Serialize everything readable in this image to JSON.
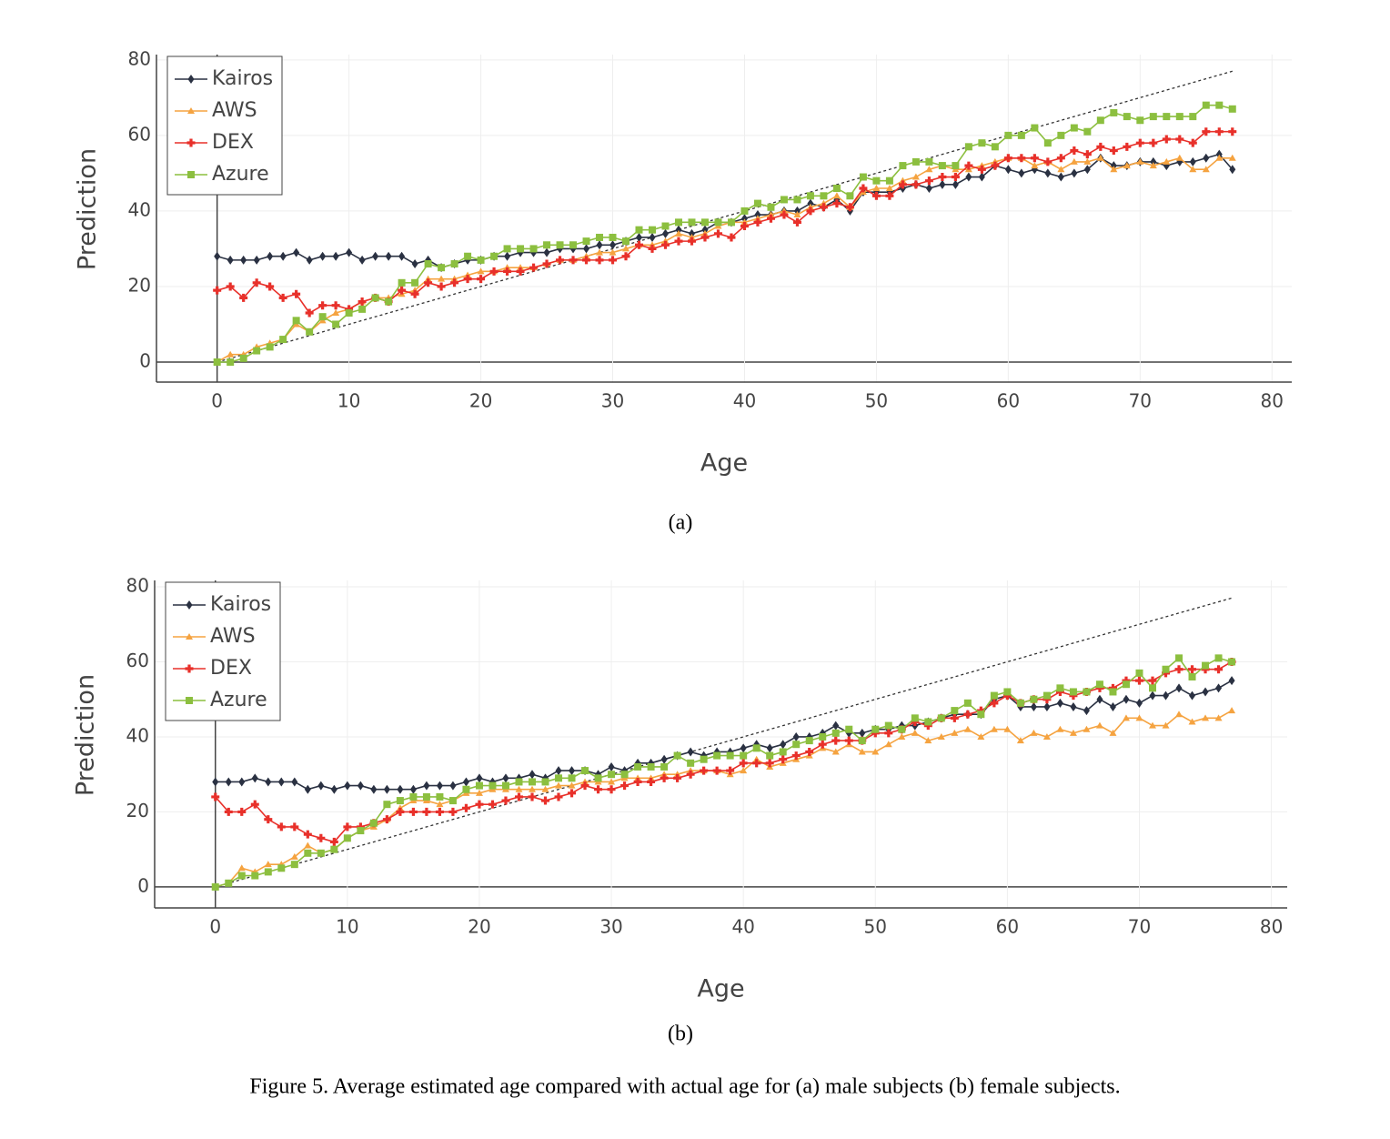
{
  "chart_data": [
    {
      "type": "line",
      "label": "(a)",
      "x_label": "Age",
      "y_label": "Prediction",
      "x": [
        0,
        1,
        2,
        3,
        4,
        5,
        6,
        7,
        8,
        9,
        10,
        11,
        12,
        13,
        14,
        15,
        16,
        17,
        18,
        19,
        20,
        21,
        22,
        23,
        24,
        25,
        26,
        27,
        28,
        29,
        30,
        31,
        32,
        33,
        34,
        35,
        36,
        37,
        38,
        39,
        40,
        41,
        42,
        43,
        44,
        45,
        46,
        47,
        48,
        49,
        50,
        51,
        52,
        53,
        54,
        55,
        56,
        57,
        58,
        59,
        60,
        61,
        62,
        63,
        64,
        65,
        66,
        67,
        68,
        69,
        70,
        71,
        72,
        73,
        74,
        75,
        76,
        77
      ],
      "series": [
        {
          "name": "Kairos",
          "color": "#2a3142",
          "marker": "diamond",
          "values": [
            28,
            27,
            27,
            27,
            28,
            28,
            29,
            27,
            28,
            28,
            29,
            27,
            28,
            28,
            28,
            26,
            27,
            25,
            26,
            27,
            27,
            28,
            28,
            29,
            29,
            29,
            30,
            30,
            30,
            31,
            31,
            32,
            33,
            33,
            34,
            35,
            34,
            35,
            37,
            37,
            38,
            39,
            39,
            40,
            40,
            42,
            41,
            43,
            40,
            45,
            45,
            45,
            46,
            47,
            46,
            47,
            47,
            49,
            49,
            52,
            51,
            50,
            51,
            50,
            49,
            50,
            51,
            54,
            52,
            52,
            53,
            53,
            52,
            53,
            53,
            54,
            55,
            51
          ]
        },
        {
          "name": "AWS",
          "color": "#f5a340",
          "marker": "triangle",
          "values": [
            0,
            2,
            2,
            4,
            5,
            6,
            10,
            8,
            11,
            13,
            14,
            16,
            17,
            17,
            18,
            19,
            22,
            22,
            22,
            23,
            24,
            24,
            25,
            25,
            25,
            26,
            27,
            27,
            28,
            29,
            29,
            30,
            31,
            31,
            32,
            34,
            33,
            34,
            36,
            37,
            37,
            38,
            39,
            40,
            39,
            41,
            42,
            44,
            41,
            45,
            46,
            46,
            48,
            49,
            51,
            52,
            51,
            51,
            52,
            53,
            54,
            54,
            52,
            53,
            51,
            53,
            53,
            54,
            51,
            52,
            53,
            52,
            53,
            54,
            51,
            51,
            54,
            54
          ]
        },
        {
          "name": "DEX",
          "color": "#e8302a",
          "marker": "cross",
          "values": [
            19,
            20,
            17,
            21,
            20,
            17,
            18,
            13,
            15,
            15,
            14,
            16,
            17,
            16,
            19,
            18,
            21,
            20,
            21,
            22,
            22,
            24,
            24,
            24,
            25,
            26,
            27,
            27,
            27,
            27,
            27,
            28,
            31,
            30,
            31,
            32,
            32,
            33,
            34,
            33,
            36,
            37,
            38,
            39,
            37,
            40,
            41,
            42,
            41,
            46,
            44,
            44,
            47,
            47,
            48,
            49,
            49,
            52,
            51,
            52,
            54,
            54,
            54,
            53,
            54,
            56,
            55,
            57,
            56,
            57,
            58,
            58,
            59,
            59,
            58,
            61,
            61,
            61
          ]
        },
        {
          "name": "Azure",
          "color": "#8cbf3f",
          "marker": "square",
          "values": [
            0,
            0,
            1,
            3,
            4,
            6,
            11,
            8,
            12,
            10,
            13,
            14,
            17,
            16,
            21,
            21,
            26,
            25,
            26,
            28,
            27,
            28,
            30,
            30,
            30,
            31,
            31,
            31,
            32,
            33,
            33,
            32,
            35,
            35,
            36,
            37,
            37,
            37,
            37,
            37,
            40,
            42,
            41,
            43,
            43,
            44,
            44,
            46,
            44,
            49,
            48,
            48,
            52,
            53,
            53,
            52,
            52,
            57,
            58,
            57,
            60,
            60,
            62,
            58,
            60,
            62,
            61,
            64,
            66,
            65,
            64,
            65,
            65,
            65,
            65,
            68,
            68,
            67
          ]
        }
      ],
      "reference_line": {
        "x": [
          0,
          77
        ],
        "y": [
          0,
          77
        ],
        "style": "dotted"
      },
      "xlim": [
        -4.6,
        81.5
      ],
      "ylim": [
        -5.3,
        81.4
      ],
      "xticks": [
        0,
        10,
        20,
        30,
        40,
        50,
        60,
        70,
        80
      ],
      "yticks": [
        0,
        20,
        40,
        60,
        80
      ],
      "grid": true,
      "legend": "top-left"
    },
    {
      "type": "line",
      "label": "(b)",
      "x_label": "Age",
      "y_label": "Prediction",
      "x": [
        0,
        1,
        2,
        3,
        4,
        5,
        6,
        7,
        8,
        9,
        10,
        11,
        12,
        13,
        14,
        15,
        16,
        17,
        18,
        19,
        20,
        21,
        22,
        23,
        24,
        25,
        26,
        27,
        28,
        29,
        30,
        31,
        32,
        33,
        34,
        35,
        36,
        37,
        38,
        39,
        40,
        41,
        42,
        43,
        44,
        45,
        46,
        47,
        48,
        49,
        50,
        51,
        52,
        53,
        54,
        55,
        56,
        57,
        58,
        59,
        60,
        61,
        62,
        63,
        64,
        65,
        66,
        67,
        68,
        69,
        70,
        71,
        72,
        73,
        74,
        75,
        76,
        77
      ],
      "series": [
        {
          "name": "Kairos",
          "color": "#2a3142",
          "marker": "diamond",
          "values": [
            28,
            28,
            28,
            29,
            28,
            28,
            28,
            26,
            27,
            26,
            27,
            27,
            26,
            26,
            26,
            26,
            27,
            27,
            27,
            28,
            29,
            28,
            29,
            29,
            30,
            29,
            31,
            31,
            31,
            30,
            32,
            31,
            33,
            33,
            34,
            35,
            36,
            35,
            36,
            36,
            37,
            38,
            37,
            38,
            40,
            40,
            41,
            43,
            41,
            41,
            42,
            42,
            43,
            43,
            44,
            45,
            46,
            46,
            46,
            50,
            51,
            48,
            48,
            48,
            49,
            48,
            47,
            50,
            48,
            50,
            49,
            51,
            51,
            53,
            51,
            52,
            53,
            55
          ]
        },
        {
          "name": "AWS",
          "color": "#f5a340",
          "marker": "triangle",
          "values": [
            0,
            1,
            5,
            4,
            6,
            6,
            8,
            11,
            9,
            10,
            13,
            15,
            16,
            18,
            21,
            23,
            23,
            22,
            23,
            25,
            25,
            26,
            26,
            26,
            26,
            26,
            27,
            27,
            28,
            28,
            28,
            29,
            29,
            29,
            30,
            30,
            31,
            31,
            31,
            30,
            31,
            34,
            32,
            33,
            34,
            35,
            37,
            36,
            38,
            36,
            36,
            38,
            40,
            41,
            39,
            40,
            41,
            42,
            40,
            42,
            42,
            39,
            41,
            40,
            42,
            41,
            42,
            43,
            41,
            45,
            45,
            43,
            43,
            46,
            44,
            45,
            45,
            47
          ]
        },
        {
          "name": "DEX",
          "color": "#e8302a",
          "marker": "cross",
          "values": [
            24,
            20,
            20,
            22,
            18,
            16,
            16,
            14,
            13,
            12,
            16,
            16,
            17,
            18,
            20,
            20,
            20,
            20,
            20,
            21,
            22,
            22,
            23,
            24,
            24,
            23,
            24,
            25,
            27,
            26,
            26,
            27,
            28,
            28,
            29,
            29,
            30,
            31,
            31,
            31,
            33,
            33,
            33,
            34,
            35,
            36,
            38,
            39,
            39,
            39,
            41,
            41,
            42,
            44,
            43,
            45,
            45,
            46,
            47,
            49,
            51,
            49,
            50,
            50,
            52,
            51,
            52,
            53,
            53,
            55,
            55,
            55,
            57,
            58,
            58,
            58,
            58,
            60
          ]
        },
        {
          "name": "Azure",
          "color": "#8cbf3f",
          "marker": "square",
          "values": [
            0,
            1,
            3,
            3,
            4,
            5,
            6,
            9,
            9,
            10,
            13,
            15,
            17,
            22,
            23,
            24,
            24,
            24,
            23,
            26,
            27,
            27,
            27,
            28,
            28,
            28,
            29,
            29,
            31,
            29,
            30,
            30,
            32,
            32,
            32,
            35,
            33,
            34,
            35,
            35,
            35,
            37,
            35,
            36,
            38,
            39,
            40,
            41,
            42,
            39,
            42,
            43,
            42,
            45,
            44,
            45,
            47,
            49,
            46,
            51,
            52,
            49,
            50,
            51,
            53,
            52,
            52,
            54,
            52,
            54,
            57,
            53,
            58,
            61,
            56,
            59,
            61,
            60
          ]
        }
      ],
      "reference_line": {
        "x": [
          0,
          77
        ],
        "y": [
          0,
          77
        ],
        "style": "dotted"
      },
      "xlim": [
        -4.6,
        81.2
      ],
      "ylim": [
        -5.6,
        81.7
      ],
      "xticks": [
        0,
        10,
        20,
        30,
        40,
        50,
        60,
        70,
        80
      ],
      "yticks": [
        0,
        20,
        40,
        60,
        80
      ],
      "grid": true,
      "legend": "top-left"
    }
  ],
  "caption": "Figure 5. Average estimated age compared with actual age for (a) male subjects (b) female subjects."
}
